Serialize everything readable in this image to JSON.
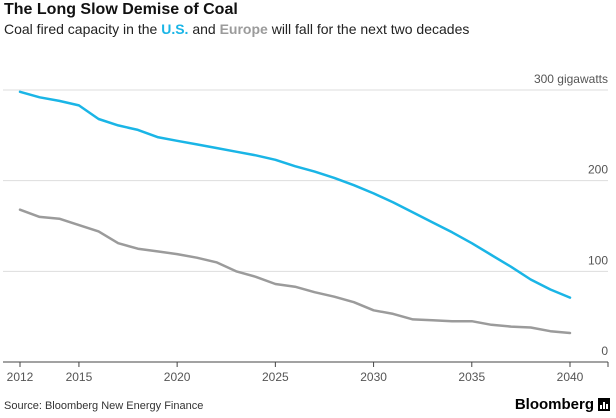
{
  "header": {
    "title": "The Long Slow Demise of Coal",
    "subtitle_before": "Coal fired capacity in the ",
    "subtitle_us": "U.S.",
    "subtitle_mid": " and ",
    "subtitle_europe": "Europe",
    "subtitle_after": " will fall for the next two decades"
  },
  "footer": {
    "source": "Source: Bloomberg New Energy Finance",
    "brand": "Bloomberg"
  },
  "colors": {
    "us": "#1ab5e6",
    "europe": "#9b9b9b",
    "grid": "#dddddd",
    "axis": "#444444",
    "tick_text": "#555555"
  },
  "chart_data": {
    "type": "line",
    "title": "The Long Slow Demise of Coal",
    "subtitle": "Coal fired capacity in the U.S. and Europe will fall for the next two decades",
    "xlabel": "",
    "ylabel": "",
    "xlim": [
      2012,
      2041
    ],
    "ylim": [
      0,
      300
    ],
    "x_ticks": [
      2012,
      2015,
      2020,
      2025,
      2030,
      2035,
      2040
    ],
    "x_tick_labels": [
      "2012",
      "2015",
      "2020",
      "2025",
      "2030",
      "2035",
      "2040"
    ],
    "y_ticks": [
      0,
      100,
      200,
      300
    ],
    "y_tick_labels": [
      "0",
      "100",
      "200",
      "300 gigawatts"
    ],
    "grid": true,
    "legend": "in subtitle",
    "x": [
      2012,
      2013,
      2014,
      2015,
      2016,
      2017,
      2018,
      2019,
      2020,
      2021,
      2022,
      2023,
      2024,
      2025,
      2026,
      2027,
      2028,
      2029,
      2030,
      2031,
      2032,
      2033,
      2034,
      2035,
      2036,
      2037,
      2038,
      2039,
      2040
    ],
    "series": [
      {
        "name": "U.S.",
        "values": [
          298,
          292,
          288,
          283,
          268,
          261,
          256,
          248,
          244,
          240,
          236,
          232,
          228,
          223,
          216,
          210,
          203,
          195,
          186,
          176,
          165,
          154,
          143,
          131,
          118,
          105,
          91,
          80,
          71
        ]
      },
      {
        "name": "Europe",
        "values": [
          168,
          160,
          158,
          151,
          144,
          131,
          125,
          122,
          119,
          115,
          110,
          100,
          94,
          86,
          83,
          77,
          72,
          66,
          57,
          53,
          47,
          46,
          45,
          45,
          41,
          39,
          38,
          34,
          32
        ]
      }
    ]
  }
}
